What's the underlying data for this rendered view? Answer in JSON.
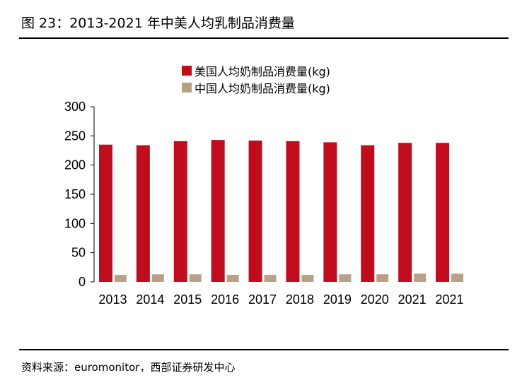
{
  "figure": {
    "title": "图 23：2013-2021 年中美人均乳制品消费量",
    "source": "资料来源：euromonitor，西部证券研发中心"
  },
  "chart_data": {
    "type": "bar",
    "categories": [
      "2013",
      "2014",
      "2015",
      "2016",
      "2017",
      "2018",
      "2019",
      "2020",
      "2021",
      "2021"
    ],
    "series": [
      {
        "name": "美国人均奶制品消费量(kg)",
        "color": "#c00d1e",
        "values": [
          235,
          234,
          241,
          243,
          242,
          241,
          239,
          234,
          238,
          238
        ]
      },
      {
        "name": "中国人均奶制品消费量(kg)",
        "color": "#b8a184",
        "values": [
          12,
          13,
          13,
          12,
          12,
          12,
          13,
          13,
          14,
          14
        ]
      }
    ],
    "yticks": [
      "0",
      "50",
      "100",
      "150",
      "200",
      "250",
      "300"
    ],
    "ylim": [
      0,
      300
    ],
    "grid": false,
    "legend_position": "top-center"
  }
}
